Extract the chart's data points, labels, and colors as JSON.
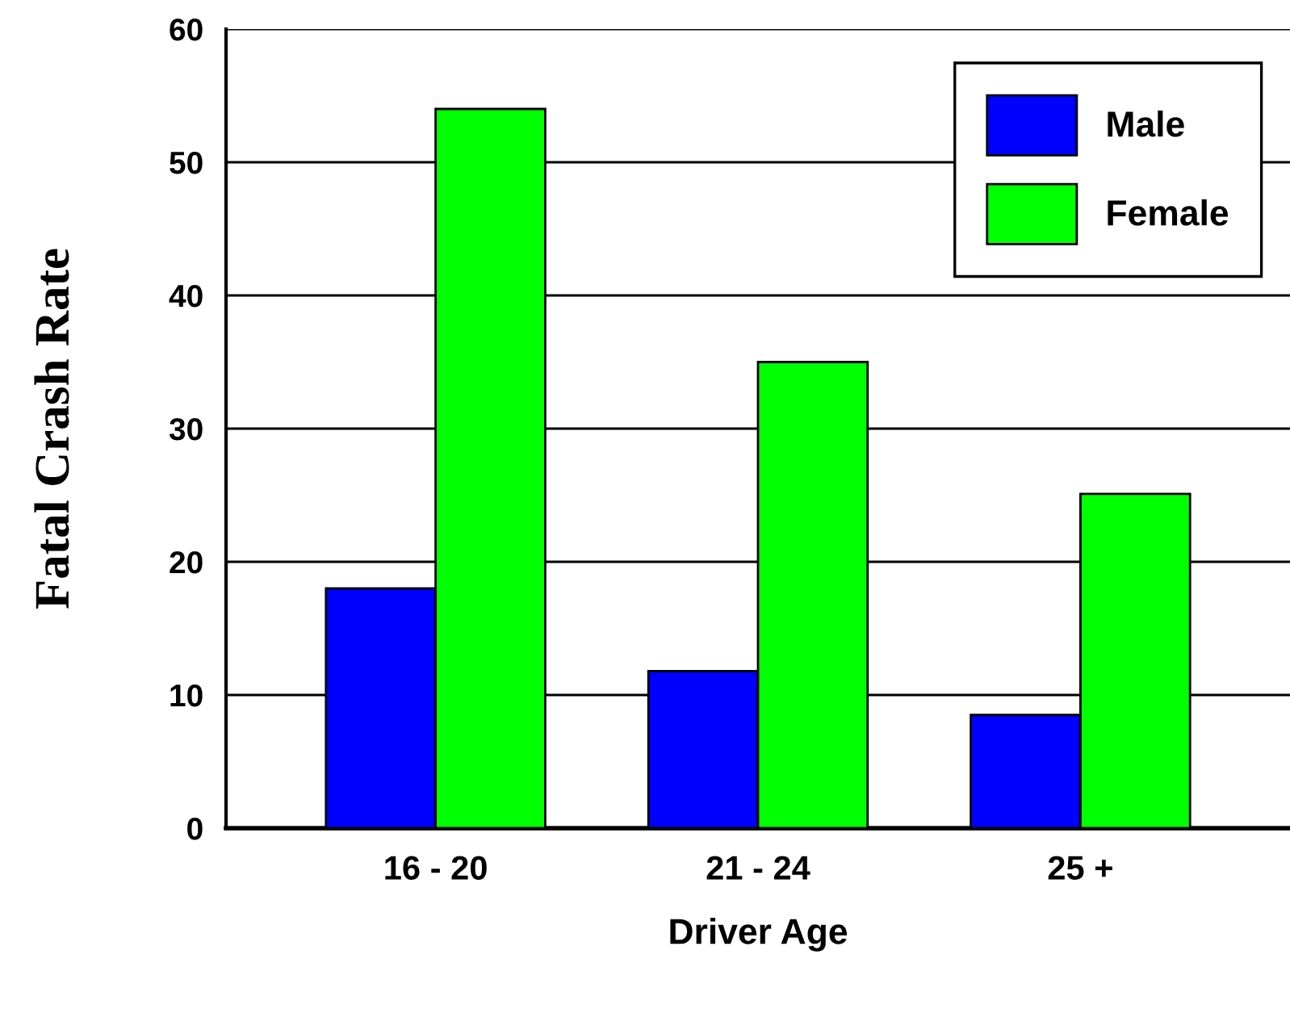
{
  "chart_data": {
    "type": "bar",
    "xlabel": "Driver Age",
    "ylabel": "Fatal Crash Rate",
    "categories": [
      "16 - 20",
      "21 - 24",
      "25 +"
    ],
    "series": [
      {
        "name": "Male",
        "color": "#0000ff",
        "values": [
          18,
          11.8,
          8.5
        ]
      },
      {
        "name": "Female",
        "color": "#00ff00",
        "values": [
          54,
          35,
          25.1
        ]
      }
    ],
    "ylim": [
      0,
      60
    ],
    "yticks": [
      0,
      10,
      20,
      30,
      40,
      50,
      60
    ],
    "grid": "y",
    "legend": "top right"
  }
}
